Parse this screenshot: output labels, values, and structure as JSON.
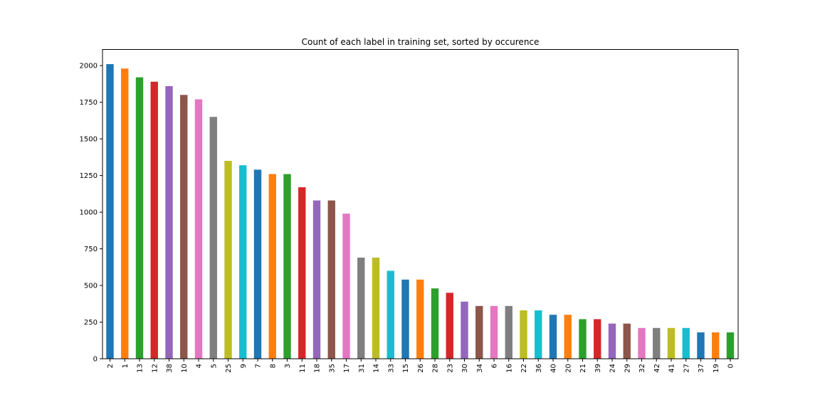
{
  "chart_data": {
    "type": "bar",
    "title": "Count of each label in training set, sorted by occurence",
    "xlabel": "",
    "ylabel": "",
    "ylim": [
      0,
      2110
    ],
    "yticks": [
      "0",
      "250",
      "500",
      "750",
      "1000",
      "1250",
      "1500",
      "1750",
      "2000"
    ],
    "categories": [
      "2",
      "1",
      "13",
      "12",
      "38",
      "10",
      "4",
      "5",
      "25",
      "9",
      "7",
      "8",
      "3",
      "11",
      "18",
      "35",
      "17",
      "31",
      "14",
      "33",
      "15",
      "26",
      "28",
      "23",
      "30",
      "34",
      "6",
      "16",
      "22",
      "36",
      "40",
      "20",
      "21",
      "39",
      "24",
      "29",
      "32",
      "42",
      "41",
      "27",
      "37",
      "19",
      "0"
    ],
    "values": [
      2010,
      1980,
      1920,
      1890,
      1860,
      1800,
      1770,
      1650,
      1350,
      1320,
      1290,
      1260,
      1260,
      1170,
      1080,
      1080,
      990,
      690,
      690,
      600,
      540,
      540,
      480,
      450,
      390,
      360,
      360,
      360,
      330,
      330,
      300,
      300,
      270,
      270,
      240,
      240,
      210,
      210,
      210,
      210,
      180,
      180,
      180
    ],
    "colors": [
      "#1f77b4",
      "#ff7f0e",
      "#2ca02c",
      "#d62728",
      "#9467bd",
      "#8c564b",
      "#e377c2",
      "#7f7f7f",
      "#bcbd22",
      "#17becf"
    ],
    "grid": false,
    "legend": "none"
  }
}
